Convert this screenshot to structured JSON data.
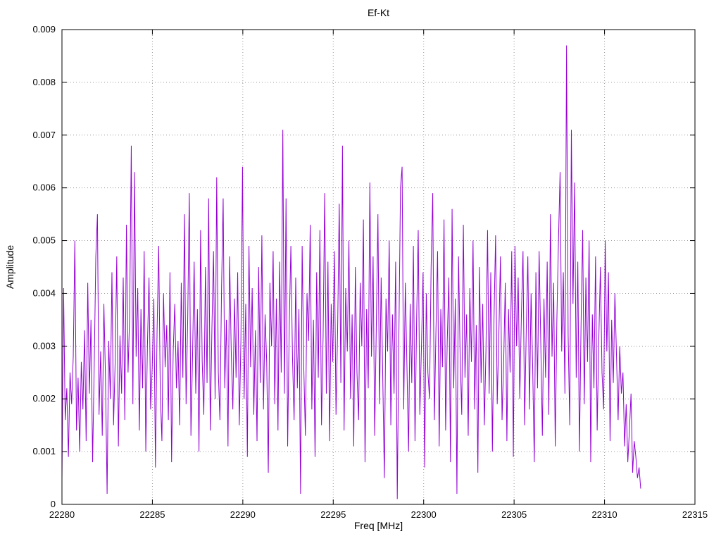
{
  "page": {
    "background": "#ffffff"
  },
  "chart_data": {
    "type": "line",
    "title": "Ef-Kt",
    "xlabel": "Freq [MHz]",
    "ylabel": "Amplitude",
    "xlim": [
      22280,
      22315
    ],
    "ylim": [
      0,
      0.009
    ],
    "x_ticks": [
      22280,
      22285,
      22290,
      22295,
      22300,
      22305,
      22310,
      22315
    ],
    "x_tick_labels": [
      "22280",
      "22285",
      "22290",
      "22295",
      "22300",
      "22305",
      "22310",
      "22315"
    ],
    "y_ticks": [
      0,
      0.001,
      0.002,
      0.003,
      0.004,
      0.005,
      0.006,
      0.007,
      0.008,
      0.009
    ],
    "y_tick_labels": [
      "0",
      "0.001",
      "0.002",
      "0.003",
      "0.004",
      "0.005",
      "0.006",
      "0.007",
      "0.008",
      "0.009"
    ],
    "grid": true,
    "grid_color": "#9a9a9a",
    "legend": "none",
    "line_color": "#9400d3",
    "series": [
      {
        "name": "Ef-Kt",
        "x_start": 22280,
        "x_end": 22312,
        "n_points": 360,
        "values": [
          0.0005,
          0.0041,
          0.0016,
          0.0022,
          0.0009,
          0.0025,
          0.0019,
          0.0028,
          0.005,
          0.0014,
          0.0024,
          0.001,
          0.0027,
          0.0018,
          0.0033,
          0.0012,
          0.0042,
          0.0021,
          0.0035,
          0.0008,
          0.0026,
          0.0047,
          0.0055,
          0.0017,
          0.0029,
          0.0013,
          0.0038,
          0.0024,
          0.0002,
          0.0031,
          0.002,
          0.0044,
          0.0015,
          0.0027,
          0.0047,
          0.0011,
          0.0032,
          0.0021,
          0.0043,
          0.0016,
          0.0053,
          0.0025,
          0.0036,
          0.0068,
          0.0019,
          0.0063,
          0.0028,
          0.0041,
          0.0014,
          0.0037,
          0.0022,
          0.0048,
          0.001,
          0.003,
          0.0043,
          0.0018,
          0.0026,
          0.0039,
          0.0007,
          0.0033,
          0.0049,
          0.0021,
          0.0012,
          0.004,
          0.0026,
          0.0034,
          0.0016,
          0.0044,
          0.0008,
          0.0029,
          0.0038,
          0.0022,
          0.0031,
          0.0015,
          0.0042,
          0.0024,
          0.0055,
          0.0019,
          0.0035,
          0.0059,
          0.0013,
          0.0028,
          0.0046,
          0.0021,
          0.0037,
          0.001,
          0.0052,
          0.0027,
          0.0017,
          0.0045,
          0.0023,
          0.0058,
          0.0014,
          0.0033,
          0.0048,
          0.002,
          0.0062,
          0.0025,
          0.0016,
          0.0041,
          0.0058,
          0.0022,
          0.0035,
          0.0011,
          0.0047,
          0.0029,
          0.0018,
          0.0039,
          0.0024,
          0.0044,
          0.0015,
          0.0031,
          0.0064,
          0.002,
          0.0038,
          0.0009,
          0.0049,
          0.0026,
          0.0041,
          0.0017,
          0.0033,
          0.0012,
          0.0045,
          0.0023,
          0.0051,
          0.0018,
          0.0036,
          0.0027,
          0.0006,
          0.0042,
          0.003,
          0.0048,
          0.0019,
          0.0039,
          0.0014,
          0.0046,
          0.0025,
          0.0071,
          0.0021,
          0.0058,
          0.0011,
          0.0034,
          0.0049,
          0.0028,
          0.0016,
          0.0043,
          0.0022,
          0.0037,
          0.0002,
          0.0049,
          0.0026,
          0.0013,
          0.004,
          0.0031,
          0.0053,
          0.0018,
          0.0035,
          0.0009,
          0.0044,
          0.0024,
          0.0052,
          0.0015,
          0.0032,
          0.0059,
          0.0021,
          0.0046,
          0.0012,
          0.0038,
          0.0027,
          0.0048,
          0.0017,
          0.0033,
          0.0057,
          0.0023,
          0.0068,
          0.0014,
          0.0041,
          0.0029,
          0.005,
          0.002,
          0.0036,
          0.0011,
          0.0045,
          0.0025,
          0.0016,
          0.0042,
          0.003,
          0.0054,
          0.0008,
          0.0037,
          0.0022,
          0.0061,
          0.0028,
          0.0047,
          0.0013,
          0.0034,
          0.0055,
          0.0019,
          0.0043,
          0.0024,
          0.0005,
          0.0039,
          0.0029,
          0.005,
          0.0015,
          0.0036,
          0.0021,
          0.0046,
          0.0001,
          0.0032,
          0.006,
          0.0064,
          0.0018,
          0.0042,
          0.0026,
          0.001,
          0.0038,
          0.0023,
          0.0049,
          0.0012,
          0.0035,
          0.0052,
          0.0017,
          0.003,
          0.0044,
          0.0007,
          0.004,
          0.0025,
          0.002,
          0.0045,
          0.0059,
          0.0016,
          0.0033,
          0.0048,
          0.0011,
          0.0037,
          0.0026,
          0.0054,
          0.0014,
          0.0031,
          0.0043,
          0.0008,
          0.0056,
          0.0022,
          0.0039,
          0.0002,
          0.0047,
          0.0028,
          0.0017,
          0.0053,
          0.0024,
          0.0036,
          0.0013,
          0.0041,
          0.0027,
          0.005,
          0.0018,
          0.0034,
          0.0006,
          0.0045,
          0.0023,
          0.0038,
          0.0015,
          0.0029,
          0.0052,
          0.0021,
          0.0044,
          0.001,
          0.0035,
          0.0051,
          0.0019,
          0.0032,
          0.0047,
          0.0016,
          0.0027,
          0.0042,
          0.0012,
          0.0037,
          0.0025,
          0.0048,
          0.0009,
          0.0049,
          0.003,
          0.0043,
          0.002,
          0.0036,
          0.0048,
          0.0015,
          0.0033,
          0.0047,
          0.0018,
          0.004,
          0.0026,
          0.0008,
          0.0044,
          0.0022,
          0.0048,
          0.0031,
          0.0013,
          0.0039,
          0.0024,
          0.0046,
          0.0017,
          0.0055,
          0.0028,
          0.0042,
          0.0011,
          0.0035,
          0.005,
          0.0063,
          0.0029,
          0.0044,
          0.0021,
          0.0087,
          0.0032,
          0.0015,
          0.0071,
          0.0038,
          0.0061,
          0.0024,
          0.0046,
          0.001,
          0.0034,
          0.0052,
          0.0019,
          0.0043,
          0.0027,
          0.005,
          0.0008,
          0.0036,
          0.0022,
          0.0047,
          0.0014,
          0.0031,
          0.0045,
          0.0025,
          0.0018,
          0.005,
          0.0029,
          0.0044,
          0.0012,
          0.0035,
          0.0023,
          0.004,
          0.0028,
          0.0016,
          0.003,
          0.0021,
          0.0025,
          0.0011,
          0.0019,
          0.0008,
          0.0014,
          0.0021,
          0.0006,
          0.0012,
          0.0009,
          0.0005,
          0.0007,
          0.0003
        ]
      }
    ]
  }
}
